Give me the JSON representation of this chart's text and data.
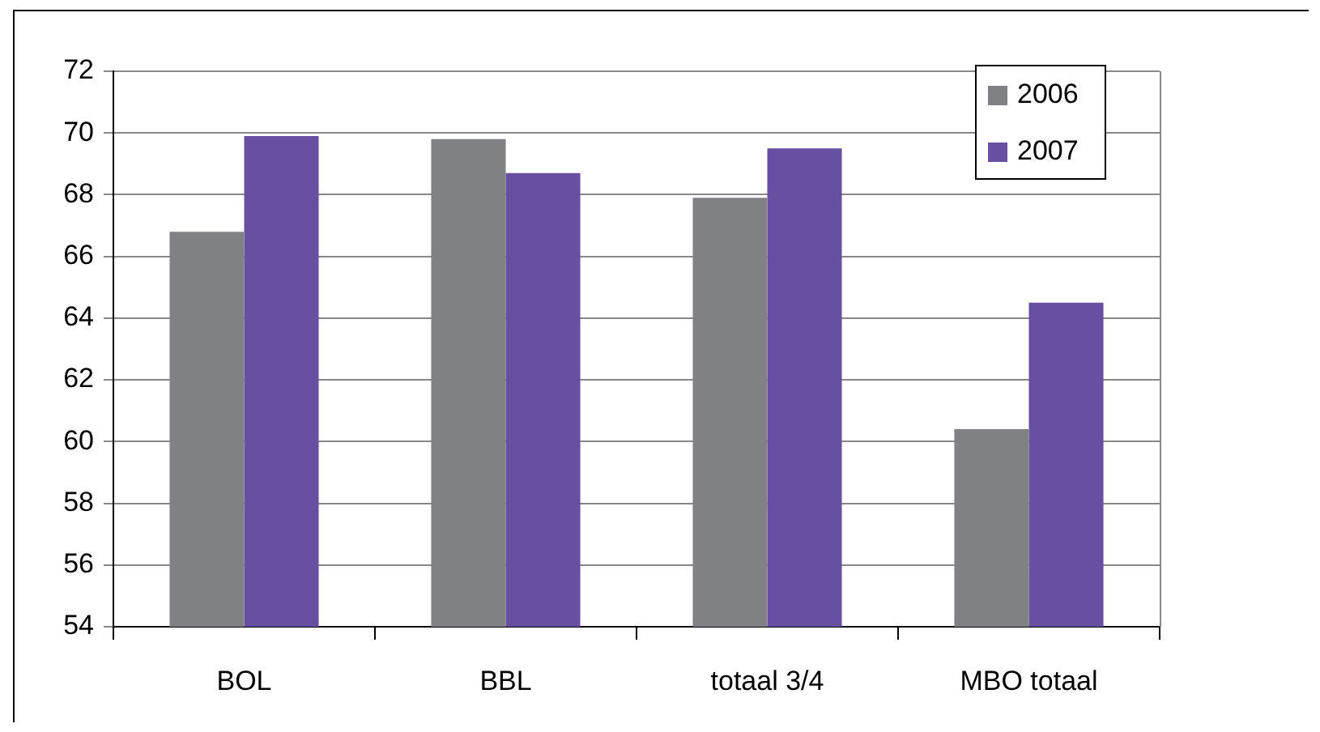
{
  "chart_data": {
    "type": "bar",
    "categories": [
      "BOL",
      "BBL",
      "totaal 3/4",
      "MBO totaal"
    ],
    "series": [
      {
        "name": "2006",
        "color": "#808185",
        "values": [
          66.8,
          69.8,
          67.9,
          60.4
        ]
      },
      {
        "name": "2007",
        "color": "#6750a2",
        "values": [
          69.9,
          68.7,
          69.5,
          64.5
        ]
      }
    ],
    "ylim": [
      54,
      72
    ],
    "yticks": [
      54,
      56,
      58,
      60,
      62,
      64,
      66,
      68,
      70,
      72
    ],
    "grid": "y",
    "legend": "top right"
  }
}
